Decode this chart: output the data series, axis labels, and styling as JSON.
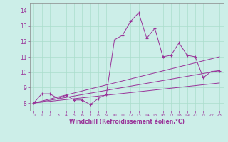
{
  "title": "",
  "xlabel": "Windchill (Refroidissement éolien,°C)",
  "ylabel": "",
  "bg_color": "#cceee8",
  "line_color": "#993399",
  "grid_color": "#aaddcc",
  "xlim": [
    -0.5,
    23.5
  ],
  "ylim": [
    7.5,
    14.5
  ],
  "xticks": [
    0,
    1,
    2,
    3,
    4,
    5,
    6,
    7,
    8,
    9,
    10,
    11,
    12,
    13,
    14,
    15,
    16,
    17,
    18,
    19,
    20,
    21,
    22,
    23
  ],
  "yticks": [
    8,
    9,
    10,
    11,
    12,
    13,
    14
  ],
  "series1_x": [
    0,
    1,
    2,
    3,
    4,
    5,
    6,
    7,
    8,
    9,
    10,
    11,
    12,
    13,
    14,
    15,
    16,
    17,
    18,
    19,
    20,
    21,
    22,
    23
  ],
  "series1_y": [
    8.0,
    8.6,
    8.6,
    8.3,
    8.5,
    8.2,
    8.2,
    7.9,
    8.3,
    8.55,
    12.1,
    12.4,
    13.3,
    13.85,
    12.2,
    12.85,
    11.0,
    11.1,
    11.9,
    11.1,
    11.0,
    9.65,
    10.05,
    10.1
  ],
  "line2_x": [
    0,
    23
  ],
  "line2_y": [
    8.0,
    10.1
  ],
  "line3_x": [
    0,
    23
  ],
  "line3_y": [
    8.0,
    9.3
  ],
  "line4_x": [
    0,
    23
  ],
  "line4_y": [
    8.0,
    11.0
  ]
}
